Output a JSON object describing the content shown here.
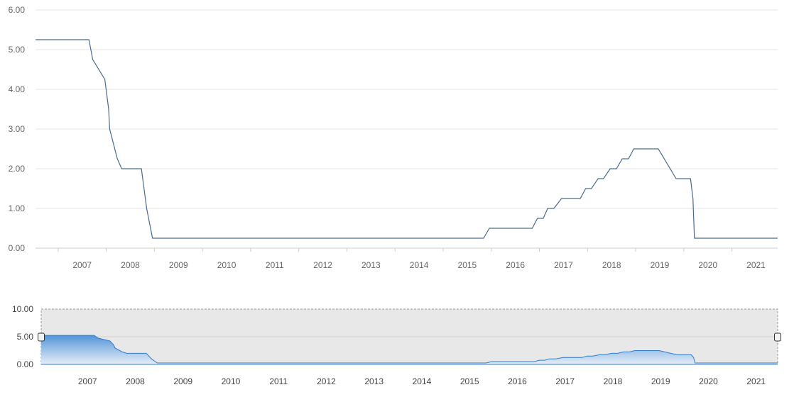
{
  "chart_data": {
    "type": "line",
    "title": "",
    "xlabel": "",
    "ylabel": "",
    "xlim": [
      2006.53,
      2021.95
    ],
    "ylim": [
      0,
      6
    ],
    "y_ticks": [
      "0.00",
      "1.00",
      "2.00",
      "3.00",
      "4.00",
      "5.00",
      "6.00"
    ],
    "x_ticks": [
      "2007",
      "2008",
      "2009",
      "2010",
      "2011",
      "2012",
      "2013",
      "2014",
      "2015",
      "2016",
      "2017",
      "2018",
      "2019",
      "2020",
      "2021"
    ],
    "grid": true,
    "legend": "none",
    "line_color": "#4a6a93",
    "series": [
      {
        "x": [
          2006.53,
          2007.64,
          2007.72,
          2007.97,
          2008.05,
          2008.07,
          2008.23,
          2008.32,
          2008.73,
          2008.84,
          2008.96,
          2015.84,
          2015.96,
          2016.85,
          2016.96,
          2017.08,
          2017.17,
          2017.3,
          2017.46,
          2017.85,
          2017.96,
          2018.08,
          2018.22,
          2018.33,
          2018.47,
          2018.6,
          2018.72,
          2018.85,
          2018.96,
          2019.47,
          2019.84,
          2019.96,
          2020.14,
          2020.19,
          2020.22,
          2021.95
        ],
        "y": [
          5.25,
          5.25,
          4.75,
          4.25,
          3.5,
          3.0,
          2.25,
          2.0,
          2.0,
          1.0,
          0.25,
          0.25,
          0.5,
          0.5,
          0.75,
          0.75,
          1.0,
          1.0,
          1.25,
          1.25,
          1.5,
          1.5,
          1.75,
          1.75,
          2.0,
          2.0,
          2.25,
          2.25,
          2.5,
          2.5,
          1.75,
          1.75,
          1.75,
          1.25,
          0.25,
          0.25
        ]
      }
    ],
    "navigator": {
      "y_ticks": [
        "0.00",
        "5.00",
        "10.00"
      ],
      "ylim": [
        0,
        10
      ],
      "fill_top_color": "#4a90d9",
      "fill_bottom_color": "#e6eef8",
      "line_color": "#2f7bd0",
      "mask_color": "#e8e8e8"
    }
  }
}
